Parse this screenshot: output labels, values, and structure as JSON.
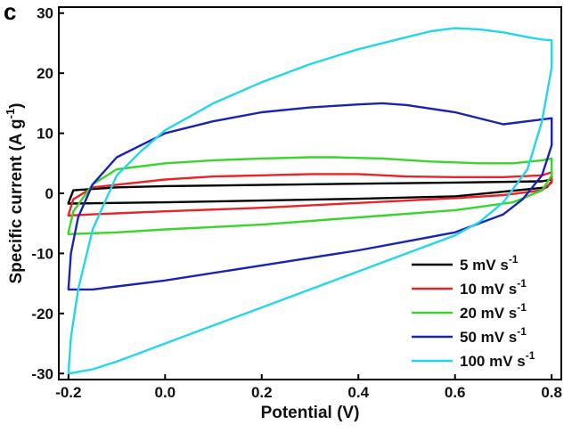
{
  "panel_label": "c",
  "chart_data": {
    "type": "line",
    "title": "",
    "xlabel": "Potential (V)",
    "ylabel": "Specific current (A g",
    "ylabel_sup": "-1",
    "ylabel_tail": ")",
    "xlim": [
      -0.22,
      0.82
    ],
    "ylim": [
      -31,
      31
    ],
    "x_ticks": [
      -0.2,
      0.0,
      0.2,
      0.4,
      0.6,
      0.8
    ],
    "x_tick_labels": [
      "-0.2",
      "0.0",
      "0.2",
      "0.4",
      "0.6",
      "0.8"
    ],
    "y_ticks": [
      -30,
      -20,
      -10,
      0,
      10,
      20,
      30
    ],
    "y_tick_labels": [
      "-30",
      "-20",
      "-10",
      "0",
      "10",
      "20",
      "30"
    ],
    "grid": false,
    "legend_position": "bottom-right",
    "series": [
      {
        "name": "5 mV s",
        "name_sup": "-1",
        "color": "#000000",
        "x": [
          -0.2,
          -0.19,
          -0.1,
          0.0,
          0.2,
          0.4,
          0.6,
          0.78,
          0.8,
          0.8,
          0.79,
          0.6,
          0.4,
          0.2,
          0.0,
          -0.2,
          -0.2
        ],
        "y": [
          -1.6,
          0.5,
          1.0,
          1.2,
          1.4,
          1.6,
          1.8,
          2.0,
          2.3,
          2.0,
          1.0,
          -0.5,
          -0.9,
          -1.2,
          -1.5,
          -1.7,
          -1.6
        ]
      },
      {
        "name": "10 mV s",
        "name_sup": "-1",
        "color": "#e8232a",
        "x": [
          -0.2,
          -0.19,
          -0.15,
          0.0,
          0.1,
          0.2,
          0.3,
          0.4,
          0.5,
          0.6,
          0.7,
          0.78,
          0.8,
          0.8,
          0.78,
          0.7,
          0.6,
          0.4,
          0.2,
          0.0,
          -0.15,
          -0.2,
          -0.2
        ],
        "y": [
          -3.6,
          -1.0,
          1.0,
          2.3,
          2.8,
          3.0,
          3.2,
          3.2,
          2.8,
          2.7,
          2.7,
          3.0,
          3.5,
          1.8,
          0.5,
          -0.3,
          -0.8,
          -1.6,
          -2.4,
          -3.0,
          -3.5,
          -3.7,
          -3.6
        ]
      },
      {
        "name": "20 mV s",
        "name_sup": "-1",
        "color": "#3ad52a",
        "x": [
          -0.2,
          -0.19,
          -0.15,
          -0.1,
          0.0,
          0.1,
          0.2,
          0.3,
          0.35,
          0.45,
          0.55,
          0.65,
          0.72,
          0.78,
          0.8,
          0.8,
          0.78,
          0.72,
          0.6,
          0.4,
          0.2,
          0.0,
          -0.1,
          -0.2,
          -0.2
        ],
        "y": [
          -6.5,
          -3.0,
          1.5,
          4.0,
          5.0,
          5.5,
          5.8,
          6.0,
          6.0,
          5.8,
          5.3,
          5.0,
          5.0,
          5.5,
          5.8,
          3.0,
          0.5,
          -1.5,
          -2.8,
          -4.0,
          -5.2,
          -6.0,
          -6.5,
          -6.8,
          -6.5
        ]
      },
      {
        "name": "50 mV s",
        "name_sup": "-1",
        "color": "#1a24b4",
        "x": [
          -0.2,
          -0.195,
          -0.18,
          -0.15,
          -0.1,
          0.0,
          0.1,
          0.2,
          0.3,
          0.4,
          0.45,
          0.5,
          0.6,
          0.7,
          0.78,
          0.8,
          0.8,
          0.78,
          0.74,
          0.7,
          0.6,
          0.5,
          0.4,
          0.2,
          0.0,
          -0.1,
          -0.15,
          -0.2,
          -0.2
        ],
        "y": [
          -16.0,
          -10.0,
          -4.0,
          1.5,
          6.0,
          10.0,
          12.0,
          13.5,
          14.3,
          14.8,
          15.0,
          14.7,
          13.5,
          11.5,
          12.3,
          12.5,
          8.0,
          3.0,
          -1.0,
          -3.5,
          -6.5,
          -8.0,
          -9.5,
          -12.0,
          -14.5,
          -15.5,
          -16.0,
          -16.0,
          -16.0
        ]
      },
      {
        "name": "100 mV s",
        "name_sup": "-1",
        "color": "#22d8e8",
        "x": [
          -0.2,
          -0.195,
          -0.18,
          -0.15,
          -0.1,
          -0.05,
          0.0,
          0.1,
          0.2,
          0.3,
          0.4,
          0.5,
          0.55,
          0.6,
          0.65,
          0.7,
          0.75,
          0.78,
          0.8,
          0.8,
          0.78,
          0.75,
          0.7,
          0.65,
          0.6,
          0.5,
          0.4,
          0.3,
          0.2,
          0.1,
          0.0,
          -0.05,
          -0.1,
          -0.15,
          -0.2
        ],
        "y": [
          -30.0,
          -24.0,
          -16.0,
          -6.0,
          3.0,
          7.0,
          10.5,
          15.0,
          18.5,
          21.5,
          24.0,
          26.0,
          27.0,
          27.5,
          27.3,
          26.8,
          26.0,
          25.6,
          25.5,
          21.0,
          12.0,
          4.0,
          -1.5,
          -4.8,
          -7.0,
          -10.0,
          -13.0,
          -16.0,
          -19.0,
          -22.0,
          -25.0,
          -26.5,
          -28.0,
          -29.3,
          -30.0
        ]
      }
    ]
  }
}
